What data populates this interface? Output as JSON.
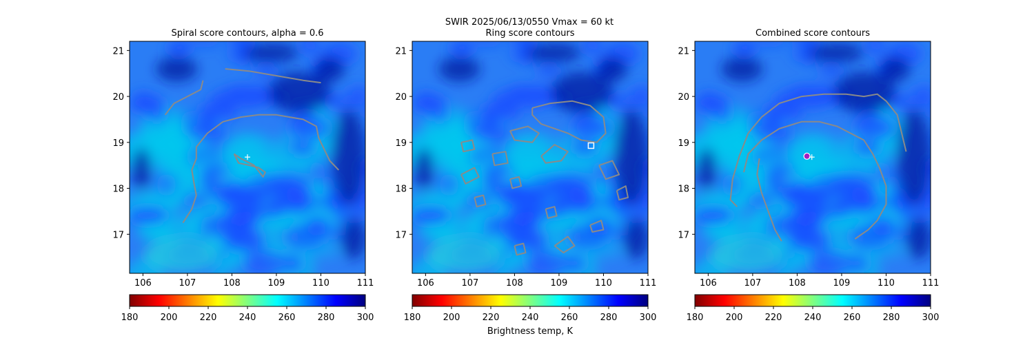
{
  "figure": {
    "suptitle_line1": "SWIR  2025/06/13/0550    Vmax = 60 kt",
    "colorbar_label": "Brightness temp, K"
  },
  "chart_data": [
    {
      "type": "heatmap",
      "title": "Spiral score contours, alpha =  0.6",
      "xlim": [
        105.7,
        111.0
      ],
      "ylim": [
        16.15,
        21.2
      ],
      "xticks": [
        106,
        107,
        108,
        109,
        110,
        111
      ],
      "yticks": [
        17,
        18,
        19,
        20,
        21
      ],
      "grid": false,
      "colormap": "jet_r",
      "contours": [
        [
          [
            107.85,
            20.6
          ],
          [
            108.4,
            20.55
          ],
          [
            109.0,
            20.45
          ],
          [
            109.6,
            20.35
          ],
          [
            110.0,
            20.3
          ]
        ],
        [
          [
            106.5,
            19.6
          ],
          [
            106.7,
            19.85
          ],
          [
            107.0,
            20.0
          ],
          [
            107.3,
            20.15
          ],
          [
            107.35,
            20.35
          ]
        ],
        [
          [
            106.9,
            17.25
          ],
          [
            107.1,
            17.55
          ],
          [
            107.2,
            17.85
          ],
          [
            107.15,
            18.1
          ],
          [
            107.1,
            18.4
          ],
          [
            107.2,
            18.65
          ],
          [
            107.2,
            18.9
          ],
          [
            107.45,
            19.2
          ],
          [
            107.8,
            19.45
          ],
          [
            108.2,
            19.55
          ],
          [
            108.6,
            19.6
          ],
          [
            109.0,
            19.6
          ],
          [
            109.3,
            19.55
          ],
          [
            109.6,
            19.5
          ],
          [
            109.9,
            19.35
          ],
          [
            109.95,
            19.1
          ],
          [
            110.1,
            18.8
          ],
          [
            110.2,
            18.6
          ],
          [
            110.4,
            18.4
          ]
        ],
        [
          [
            108.05,
            18.75
          ],
          [
            108.15,
            18.55
          ],
          [
            108.4,
            18.5
          ],
          [
            108.6,
            18.45
          ],
          [
            108.75,
            18.35
          ],
          [
            108.7,
            18.25
          ],
          [
            108.5,
            18.5
          ],
          [
            108.2,
            18.65
          ],
          [
            108.05,
            18.75
          ]
        ]
      ],
      "markers": [
        {
          "x": 108.35,
          "y": 18.68,
          "symbol": "plus",
          "color": "#ffffff"
        }
      ]
    },
    {
      "type": "heatmap",
      "title": "Ring score contours",
      "xlim": [
        105.7,
        111.0
      ],
      "ylim": [
        16.15,
        21.2
      ],
      "xticks": [
        106,
        107,
        108,
        109,
        110,
        111
      ],
      "yticks": [
        17,
        18,
        19,
        20,
        21
      ],
      "grid": false,
      "colormap": "jet_r",
      "contours": [
        [
          [
            108.4,
            19.75
          ],
          [
            108.8,
            19.85
          ],
          [
            109.3,
            19.9
          ],
          [
            109.7,
            19.8
          ],
          [
            110.0,
            19.55
          ],
          [
            110.05,
            19.2
          ],
          [
            109.85,
            19.0
          ],
          [
            109.5,
            19.05
          ],
          [
            109.2,
            19.2
          ],
          [
            108.9,
            19.3
          ],
          [
            108.6,
            19.4
          ],
          [
            108.4,
            19.6
          ],
          [
            108.4,
            19.75
          ]
        ],
        [
          [
            107.9,
            19.25
          ],
          [
            108.3,
            19.35
          ],
          [
            108.55,
            19.2
          ],
          [
            108.4,
            19.0
          ],
          [
            108.0,
            19.05
          ],
          [
            107.9,
            19.25
          ]
        ],
        [
          [
            107.5,
            18.75
          ],
          [
            107.8,
            18.8
          ],
          [
            107.85,
            18.55
          ],
          [
            107.55,
            18.5
          ],
          [
            107.5,
            18.75
          ]
        ],
        [
          [
            106.8,
            18.3
          ],
          [
            107.1,
            18.45
          ],
          [
            107.2,
            18.25
          ],
          [
            106.9,
            18.1
          ],
          [
            106.8,
            18.3
          ]
        ],
        [
          [
            108.6,
            18.7
          ],
          [
            108.9,
            18.95
          ],
          [
            109.2,
            18.8
          ],
          [
            109.05,
            18.6
          ],
          [
            108.7,
            18.55
          ],
          [
            108.6,
            18.7
          ]
        ],
        [
          [
            109.9,
            18.5
          ],
          [
            110.2,
            18.6
          ],
          [
            110.35,
            18.3
          ],
          [
            110.05,
            18.2
          ],
          [
            109.9,
            18.5
          ]
        ],
        [
          [
            110.3,
            17.95
          ],
          [
            110.5,
            18.05
          ],
          [
            110.55,
            17.8
          ],
          [
            110.35,
            17.75
          ],
          [
            110.3,
            17.95
          ]
        ],
        [
          [
            108.7,
            17.55
          ],
          [
            108.9,
            17.6
          ],
          [
            108.95,
            17.4
          ],
          [
            108.75,
            17.35
          ],
          [
            108.7,
            17.55
          ]
        ],
        [
          [
            108.9,
            16.75
          ],
          [
            109.2,
            16.95
          ],
          [
            109.35,
            16.75
          ],
          [
            109.1,
            16.6
          ],
          [
            108.9,
            16.75
          ]
        ],
        [
          [
            108.0,
            16.75
          ],
          [
            108.2,
            16.8
          ],
          [
            108.25,
            16.6
          ],
          [
            108.05,
            16.55
          ],
          [
            108.0,
            16.75
          ]
        ],
        [
          [
            107.1,
            17.8
          ],
          [
            107.3,
            17.85
          ],
          [
            107.35,
            17.65
          ],
          [
            107.15,
            17.6
          ],
          [
            107.1,
            17.8
          ]
        ],
        [
          [
            106.8,
            19.0
          ],
          [
            107.05,
            19.05
          ],
          [
            107.1,
            18.85
          ],
          [
            106.85,
            18.8
          ],
          [
            106.8,
            19.0
          ]
        ],
        [
          [
            109.7,
            17.2
          ],
          [
            109.95,
            17.3
          ],
          [
            110.0,
            17.1
          ],
          [
            109.75,
            17.05
          ],
          [
            109.7,
            17.2
          ]
        ],
        [
          [
            107.9,
            18.2
          ],
          [
            108.1,
            18.25
          ],
          [
            108.15,
            18.05
          ],
          [
            107.95,
            18.0
          ],
          [
            107.9,
            18.2
          ]
        ]
      ],
      "markers": [
        {
          "x": 109.72,
          "y": 18.93,
          "symbol": "square",
          "color": "#ffffff"
        }
      ]
    },
    {
      "type": "heatmap",
      "title": "Combined score contours",
      "xlim": [
        105.7,
        111.0
      ],
      "ylim": [
        16.15,
        21.2
      ],
      "xticks": [
        106,
        107,
        108,
        109,
        110,
        111
      ],
      "yticks": [
        17,
        18,
        19,
        20,
        21
      ],
      "grid": false,
      "colormap": "jet_r",
      "contours": [
        [
          [
            106.65,
            17.6
          ],
          [
            106.5,
            17.75
          ],
          [
            106.55,
            18.2
          ],
          [
            106.7,
            18.7
          ],
          [
            106.9,
            19.2
          ],
          [
            107.2,
            19.55
          ],
          [
            107.6,
            19.85
          ],
          [
            108.1,
            20.0
          ],
          [
            108.6,
            20.05
          ],
          [
            109.1,
            20.05
          ],
          [
            109.5,
            20.0
          ],
          [
            109.8,
            20.05
          ],
          [
            110.0,
            19.9
          ],
          [
            110.25,
            19.6
          ],
          [
            110.35,
            19.2
          ],
          [
            110.45,
            18.8
          ]
        ],
        [
          [
            106.8,
            18.35
          ],
          [
            106.9,
            18.75
          ],
          [
            107.2,
            19.05
          ],
          [
            107.6,
            19.3
          ],
          [
            108.1,
            19.45
          ],
          [
            108.5,
            19.45
          ],
          [
            108.9,
            19.35
          ],
          [
            109.2,
            19.2
          ],
          [
            109.5,
            19.05
          ],
          [
            109.7,
            18.75
          ],
          [
            109.85,
            18.45
          ],
          [
            110.0,
            18.05
          ],
          [
            110.0,
            17.65
          ],
          [
            109.8,
            17.3
          ],
          [
            109.6,
            17.1
          ],
          [
            109.3,
            16.9
          ]
        ],
        [
          [
            107.65,
            16.85
          ],
          [
            107.5,
            17.1
          ],
          [
            107.35,
            17.5
          ],
          [
            107.2,
            17.9
          ],
          [
            107.1,
            18.3
          ],
          [
            107.15,
            18.65
          ]
        ]
      ],
      "markers": [
        {
          "x": 108.22,
          "y": 18.7,
          "symbol": "circle",
          "color": "#a020c0"
        },
        {
          "x": 108.33,
          "y": 18.68,
          "symbol": "plus",
          "color": "#ffffff"
        }
      ]
    }
  ],
  "colorbar": {
    "range": [
      180,
      300
    ],
    "ticks": [
      180,
      200,
      220,
      240,
      260,
      280,
      300
    ],
    "colors": [
      "#800000",
      "#ff0000",
      "#ff8000",
      "#ffff00",
      "#80ff80",
      "#00ffff",
      "#0080ff",
      "#0000ff",
      "#000080"
    ]
  },
  "heat": {
    "base": "#2a7df5",
    "cloud_warm": "#00c8ee",
    "band": "#1b4dff",
    "dark": "#0018a0"
  }
}
